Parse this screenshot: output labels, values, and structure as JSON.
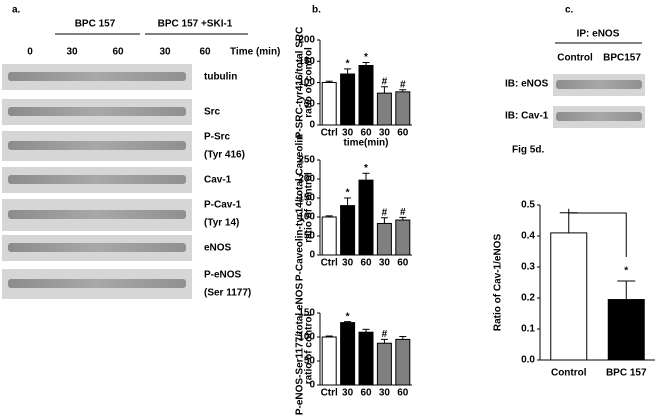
{
  "panel_a": {
    "label": "a.",
    "groups": [
      "BPC 157",
      "BPC 157 +SKI-1"
    ],
    "lanes": [
      "0",
      "30",
      "60",
      "30",
      "60"
    ],
    "time_label": "Time (min)",
    "rows": [
      [
        "tubulin"
      ],
      [
        "Src"
      ],
      [
        "P-Src",
        "(Tyr 416)"
      ],
      [
        "Cav-1"
      ],
      [
        "P-Cav-1",
        "(Tyr 14)"
      ],
      [
        "eNOS"
      ],
      [
        "P-eNOS",
        "(Ser 1177)"
      ]
    ]
  },
  "panel_b": {
    "label": "b."
  },
  "panel_c": {
    "label": "c.",
    "ip": "IP: eNOS",
    "lanes": [
      "Control",
      "BPC157"
    ],
    "rows": [
      "IB: eNOS",
      "IB: Cav-1"
    ]
  },
  "chart_data": [
    {
      "type": "bar",
      "ylabel": [
        "P-SRC-tyr416/total SRC",
        "ratio of control"
      ],
      "xlabel": "time(min)",
      "categories": [
        "Ctrl",
        "30",
        "60",
        "30",
        "60"
      ],
      "values": [
        100,
        120,
        140,
        75,
        78
      ],
      "errors": [
        3,
        12,
        7,
        15,
        5
      ],
      "annotations": [
        null,
        "*",
        "*",
        "#",
        "#"
      ],
      "colors": [
        "#ffffff",
        "#000000",
        "#000000",
        "#808080",
        "#808080"
      ],
      "ylim": [
        0,
        200
      ],
      "yticks": [
        0,
        50,
        100,
        150,
        200
      ]
    },
    {
      "type": "bar",
      "ylabel": [
        "P-Caveolin-tyr14/total Caveolin",
        "ratio of control"
      ],
      "categories": [
        "Ctrl",
        "30",
        "60",
        "30",
        "60"
      ],
      "values": [
        100,
        130,
        197,
        83,
        92
      ],
      "errors": [
        3,
        20,
        18,
        15,
        7
      ],
      "annotations": [
        null,
        "*",
        "*",
        "#",
        "#"
      ],
      "colors": [
        "#ffffff",
        "#000000",
        "#000000",
        "#808080",
        "#808080"
      ],
      "ylim": [
        0,
        250
      ],
      "yticks": [
        0,
        50,
        100,
        150,
        200,
        250
      ]
    },
    {
      "type": "bar",
      "ylabel": [
        "P-eNOS-Ser1177/total eNOS",
        "ratio of control"
      ],
      "categories": [
        "Ctrl",
        "30",
        "60",
        "30",
        "60"
      ],
      "values": [
        100,
        130,
        110,
        87,
        95
      ],
      "errors": [
        2,
        2,
        6,
        8,
        6
      ],
      "annotations": [
        null,
        "*",
        null,
        "#",
        null
      ],
      "colors": [
        "#ffffff",
        "#000000",
        "#000000",
        "#808080",
        "#808080"
      ],
      "ylim": [
        0,
        150
      ],
      "yticks": [
        0,
        50,
        100,
        150
      ]
    },
    {
      "type": "bar",
      "title": "Fig 5d.",
      "ylabel": [
        "Ratio of Cav-1/eNOS"
      ],
      "categories": [
        "Control",
        "BPC 157"
      ],
      "values": [
        0.41,
        0.195
      ],
      "errors": [
        0.065,
        0.06
      ],
      "annotations": [
        null,
        "*"
      ],
      "colors": [
        "#ffffff",
        "#000000"
      ],
      "ylim": [
        0,
        0.5
      ],
      "yticks": [
        {
          "value": 0,
          "label": "0.0"
        },
        0.1,
        0.2,
        0.3,
        0.4,
        0.5
      ]
    }
  ]
}
